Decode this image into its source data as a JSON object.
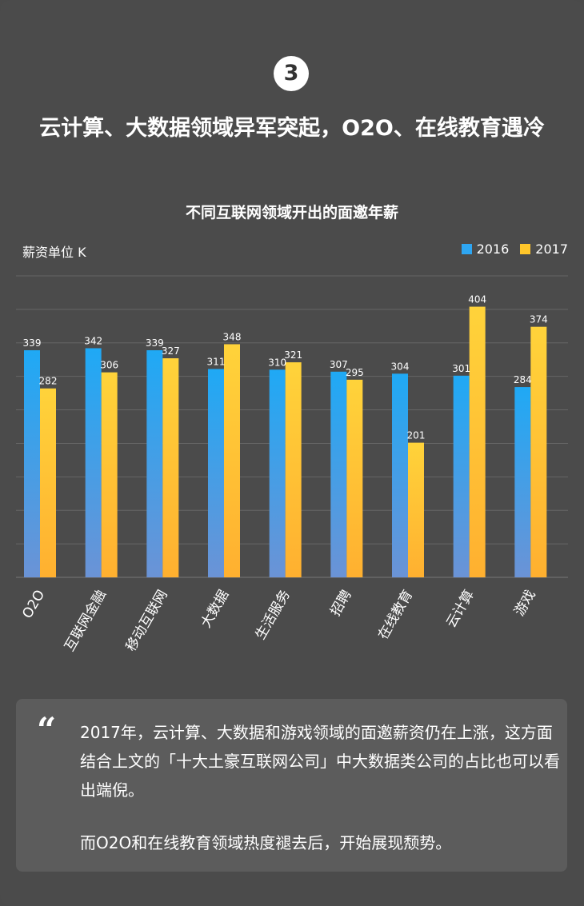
{
  "section_number": "3",
  "headline": "云计算、大数据领域异军突起，O2O、在线教育遇冷",
  "colors": {
    "series_2016": "#2ea6f2",
    "series_2017": "#ffc62a",
    "background": "#4b4b4b"
  },
  "chart_data": {
    "type": "bar",
    "title": "不同互联网领域开出的面邀年薪",
    "unit_label": "薪资单位 K",
    "categories": [
      "O2O",
      "互联网金融",
      "移动互联网",
      "大数据",
      "生活服务",
      "招聘",
      "在线教育",
      "云计算",
      "游戏"
    ],
    "series": [
      {
        "name": "2016",
        "values": [
          339,
          342,
          339,
          311,
          310,
          307,
          304,
          301,
          284
        ]
      },
      {
        "name": "2017",
        "values": [
          282,
          306,
          327,
          348,
          321,
          295,
          201,
          404,
          374
        ]
      }
    ],
    "ylim": [
      0,
      450
    ],
    "grid": true,
    "legend_position": "top-right"
  },
  "callout": {
    "quote_mark": "“",
    "paragraph1": "2017年，云计算、大数据和游戏领域的面邀薪资仍在上涨，这方面结合上文的「十大土豪互联网公司」中大数据类公司的占比也可以看出端倪。",
    "paragraph2": "而O2O和在线教育领域热度褪去后，开始展现颓势。"
  }
}
